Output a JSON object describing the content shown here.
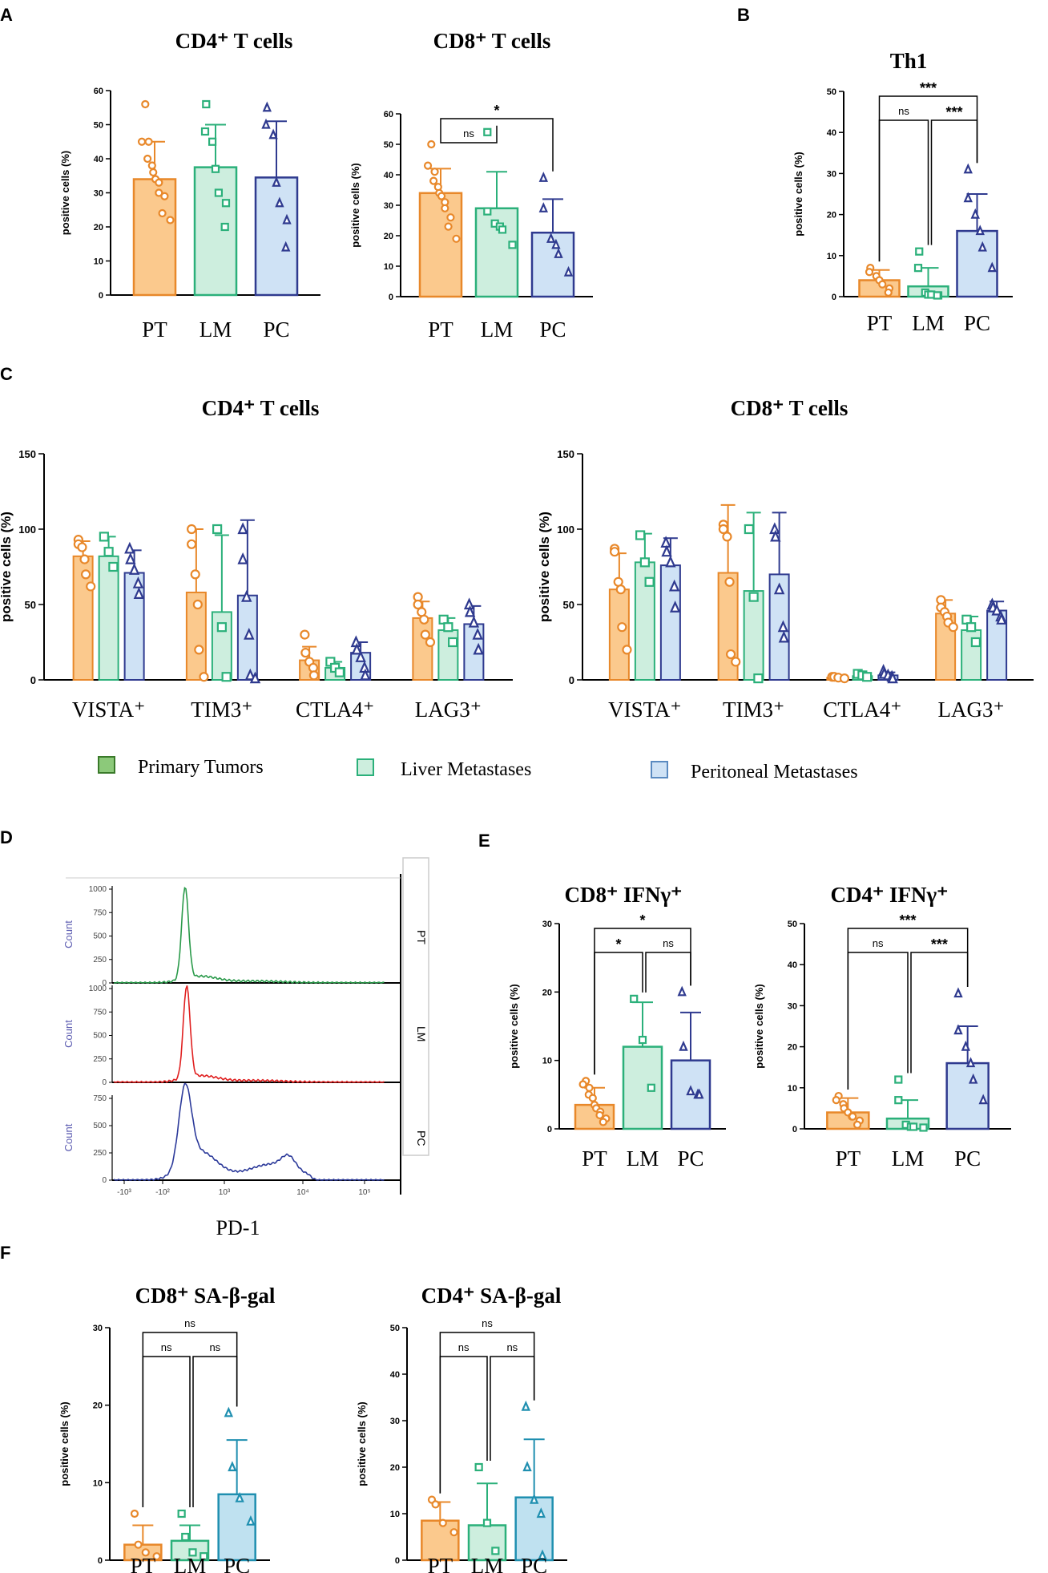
{
  "colors": {
    "pt_fill": "#fbc98d",
    "pt_stroke": "#e8882a",
    "lm_fill": "#cdeede",
    "lm_stroke": "#2bb07a",
    "pc_fill": "#cfe2f5",
    "pc_stroke": "#2f3a8f",
    "pc_fill_F": "#bfe1f0",
    "pc_stroke_F": "#1f8fb0",
    "legend_pt": "#8cc97a",
    "legend_pt_stroke": "#3a7a2a"
  },
  "panels": {
    "A": "A",
    "B": "B",
    "C": "C",
    "D": "D",
    "E": "E",
    "F": "F"
  },
  "legend": [
    "Primary Tumors",
    "Liver Metastases",
    "Peritoneal Metastases"
  ],
  "flow": {
    "xlabel": "PD-1",
    "ylabel": "Count",
    "rows": [
      "PT",
      "LM",
      "PC"
    ],
    "xticks": [
      "-10³",
      "-10²",
      "10³",
      "10⁴",
      "10⁵"
    ],
    "yticks_top": [
      "1000",
      "750",
      "500",
      "250",
      "0"
    ],
    "yticks_mid": [
      "1000",
      "750",
      "500",
      "250",
      "0"
    ],
    "yticks_bot": [
      "750",
      "500",
      "250",
      "0"
    ],
    "colors": [
      "#2a9a4a",
      "#e02020",
      "#2c3a9a"
    ]
  },
  "chart_data": [
    {
      "id": "A1",
      "type": "bar",
      "title": "CD4⁺ T cells",
      "ylabel": "positive cells (%)",
      "categories": [
        "PT",
        "LM",
        "PC"
      ],
      "ylim": [
        0,
        60
      ],
      "ytick_step": 10,
      "values": [
        34,
        37.5,
        34.5
      ],
      "errors": [
        11,
        12.5,
        16.5
      ],
      "points": [
        [
          56,
          45,
          45,
          40,
          38,
          36,
          34,
          33,
          30,
          29,
          24,
          22
        ],
        [
          56,
          48,
          45,
          37,
          30,
          27,
          20
        ],
        [
          55,
          50,
          47,
          33,
          27,
          22,
          14
        ]
      ],
      "comparisons": []
    },
    {
      "id": "A2",
      "type": "bar",
      "title": "CD8⁺ T cells",
      "ylabel": "positive cells (%)",
      "categories": [
        "PT",
        "LM",
        "PC"
      ],
      "ylim": [
        0,
        60
      ],
      "ytick_step": 10,
      "values": [
        34,
        29,
        21
      ],
      "errors": [
        8,
        12,
        11
      ],
      "points": [
        [
          50,
          43,
          41,
          38,
          36,
          34,
          33,
          31,
          29,
          26,
          23,
          19
        ],
        [
          54,
          28,
          24,
          23,
          22,
          17
        ],
        [
          39,
          29,
          19,
          17,
          14,
          8
        ]
      ],
      "comparisons": [
        {
          "from": 0,
          "to": 1,
          "label": "ns",
          "level": 0
        },
        {
          "from": 0,
          "to": 2,
          "label": "*",
          "level": 1
        }
      ]
    },
    {
      "id": "B",
      "type": "bar",
      "title": "Th1",
      "ylabel": "positive cells (%)",
      "categories": [
        "PT",
        "LM",
        "PC"
      ],
      "ylim": [
        0,
        50
      ],
      "ytick_step": 10,
      "values": [
        4,
        2.5,
        16
      ],
      "errors": [
        2.5,
        4.5,
        9
      ],
      "points": [
        [
          7,
          6,
          5,
          4,
          3,
          2,
          1
        ],
        [
          11,
          7,
          1,
          0.5,
          0.5,
          0.3,
          0.3
        ],
        [
          31,
          24,
          20,
          16,
          12,
          7
        ]
      ],
      "comparisons": [
        {
          "from": 0,
          "to": 1,
          "label": "ns",
          "level": 0
        },
        {
          "from": 1,
          "to": 2,
          "label": "***",
          "level": 0
        },
        {
          "from": 0,
          "to": 2,
          "label": "***",
          "level": 1
        }
      ]
    },
    {
      "id": "E1",
      "type": "bar",
      "title": "CD8⁺ IFNγ⁺",
      "ylabel": "positive cells (%)",
      "categories": [
        "PT",
        "LM",
        "PC"
      ],
      "ylim": [
        0,
        30
      ],
      "ytick_step": 10,
      "values": [
        3.5,
        12,
        10
      ],
      "errors": [
        2.5,
        6.5,
        7
      ],
      "points": [
        [
          7,
          6.5,
          6,
          5,
          4.5,
          3.5,
          3,
          2.5,
          2,
          1.5,
          1
        ],
        [
          19,
          13,
          6
        ],
        [
          20,
          12,
          5.5,
          5,
          5
        ]
      ],
      "comparisons": [
        {
          "from": 0,
          "to": 1,
          "label": "*",
          "level": 0
        },
        {
          "from": 1,
          "to": 2,
          "label": "ns",
          "level": 0
        },
        {
          "from": 0,
          "to": 2,
          "label": "*",
          "level": 1
        }
      ]
    },
    {
      "id": "E2",
      "type": "bar",
      "title": "CD4⁺ IFNγ⁺",
      "ylabel": "positive cells (%)",
      "categories": [
        "PT",
        "LM",
        "PC"
      ],
      "ylim": [
        0,
        50
      ],
      "ytick_step": 10,
      "values": [
        4,
        2.5,
        16
      ],
      "errors": [
        3.5,
        4.5,
        9
      ],
      "points": [
        [
          8,
          7,
          6,
          5,
          4,
          3,
          3,
          2,
          1
        ],
        [
          12,
          7,
          1,
          0.5,
          0.5,
          0.3
        ],
        [
          33,
          24,
          20,
          16,
          12,
          7
        ]
      ],
      "comparisons": [
        {
          "from": 0,
          "to": 1,
          "label": "ns",
          "level": 0
        },
        {
          "from": 1,
          "to": 2,
          "label": "***",
          "level": 0
        },
        {
          "from": 0,
          "to": 2,
          "label": "***",
          "level": 1
        }
      ]
    },
    {
      "id": "F1",
      "type": "bar",
      "title": "CD8⁺ SA-β-gal",
      "ylabel": "positive cells (%)",
      "categories": [
        "PT",
        "LM",
        "PC"
      ],
      "ylim": [
        0,
        30
      ],
      "ytick_step": 10,
      "values": [
        2,
        2.5,
        8.5
      ],
      "errors": [
        2.5,
        2,
        7
      ],
      "points": [
        [
          6,
          2,
          1,
          0.5
        ],
        [
          6,
          3,
          1,
          0.5
        ],
        [
          19,
          12,
          8,
          5
        ]
      ],
      "comparisons": [
        {
          "from": 0,
          "to": 1,
          "label": "ns",
          "level": 0
        },
        {
          "from": 1,
          "to": 2,
          "label": "ns",
          "level": 0
        },
        {
          "from": 0,
          "to": 2,
          "label": "ns",
          "level": 1
        }
      ]
    },
    {
      "id": "F2",
      "type": "bar",
      "title": "CD4⁺ SA-β-gal",
      "ylabel": "positive cells (%)",
      "categories": [
        "PT",
        "LM",
        "PC"
      ],
      "ylim": [
        0,
        50
      ],
      "ytick_step": 10,
      "values": [
        8.5,
        7.5,
        13.5
      ],
      "errors": [
        4,
        9,
        12.5
      ],
      "points": [
        [
          13,
          12,
          8,
          6
        ],
        [
          20,
          8,
          2
        ],
        [
          33,
          20,
          13,
          10,
          1
        ]
      ],
      "comparisons": [
        {
          "from": 0,
          "to": 1,
          "label": "ns",
          "level": 0
        },
        {
          "from": 1,
          "to": 2,
          "label": "ns",
          "level": 0
        },
        {
          "from": 0,
          "to": 2,
          "label": "ns",
          "level": 1
        }
      ]
    },
    {
      "id": "C1",
      "type": "grouped-bar",
      "title": "CD4⁺ T cells",
      "ylabel": "positive cells (%)",
      "categories": [
        "VISTA⁺",
        "TIM3⁺",
        "CTLA4⁺",
        "LAG3⁺"
      ],
      "ylim": [
        0,
        150
      ],
      "ytick_step": 50,
      "series": [
        {
          "name": "PT",
          "values": [
            82,
            58,
            13,
            41
          ],
          "errors": [
            10,
            42,
            9,
            11
          ],
          "points": [
            [
              93,
              90,
              88,
              80,
              70,
              62
            ],
            [
              100,
              90,
              70,
              50,
              20,
              2
            ],
            [
              30,
              18,
              12,
              8,
              3
            ],
            [
              55,
              50,
              45,
              40,
              30,
              25
            ]
          ]
        },
        {
          "name": "LM",
          "values": [
            82,
            45,
            8,
            33
          ],
          "errors": [
            13,
            51,
            4,
            8
          ],
          "points": [
            [
              95,
              85,
              75
            ],
            [
              100,
              35,
              2
            ],
            [
              12,
              8,
              5
            ],
            [
              40,
              35,
              25
            ]
          ]
        },
        {
          "name": "PC",
          "values": [
            71,
            56,
            18,
            37
          ],
          "errors": [
            15,
            50,
            7,
            12
          ],
          "points": [
            [
              87,
              80,
              73,
              64,
              57
            ],
            [
              100,
              80,
              55,
              30,
              3,
              1
            ],
            [
              25,
              20,
              15,
              8,
              3
            ],
            [
              50,
              45,
              38,
              30,
              20
            ]
          ]
        }
      ]
    },
    {
      "id": "C2",
      "type": "grouped-bar",
      "title": "CD8⁺ T cells",
      "ylabel": "positive cells (%)",
      "categories": [
        "VISTA⁺",
        "TIM3⁺",
        "CTLA4⁺",
        "LAG3⁺"
      ],
      "ylim": [
        0,
        150
      ],
      "ytick_step": 50,
      "series": [
        {
          "name": "PT",
          "values": [
            60,
            71,
            1.5,
            44
          ],
          "errors": [
            24,
            45,
            1,
            9
          ],
          "points": [
            [
              87,
              85,
              65,
              60,
              35,
              20
            ],
            [
              103,
              100,
              95,
              65,
              17,
              12
            ],
            [
              2,
              2,
              1.5,
              1
            ],
            [
              53,
              48,
              45,
              42,
              38,
              35
            ]
          ]
        },
        {
          "name": "LM",
          "values": [
            78,
            59,
            2.5,
            33
          ],
          "errors": [
            19,
            52,
            2,
            9
          ],
          "points": [
            [
              96,
              78,
              65
            ],
            [
              100,
              55,
              1
            ],
            [
              4,
              3,
              2
            ],
            [
              40,
              35,
              25
            ]
          ]
        },
        {
          "name": "PC",
          "values": [
            76,
            70,
            3,
            46
          ],
          "errors": [
            18,
            41,
            2,
            6
          ],
          "points": [
            [
              91,
              85,
              78,
              62,
              48
            ],
            [
              100,
              95,
              60,
              35,
              28
            ],
            [
              6,
              4,
              3,
              2,
              1
            ],
            [
              50,
              48,
              46,
              42,
              40
            ]
          ]
        }
      ]
    }
  ]
}
